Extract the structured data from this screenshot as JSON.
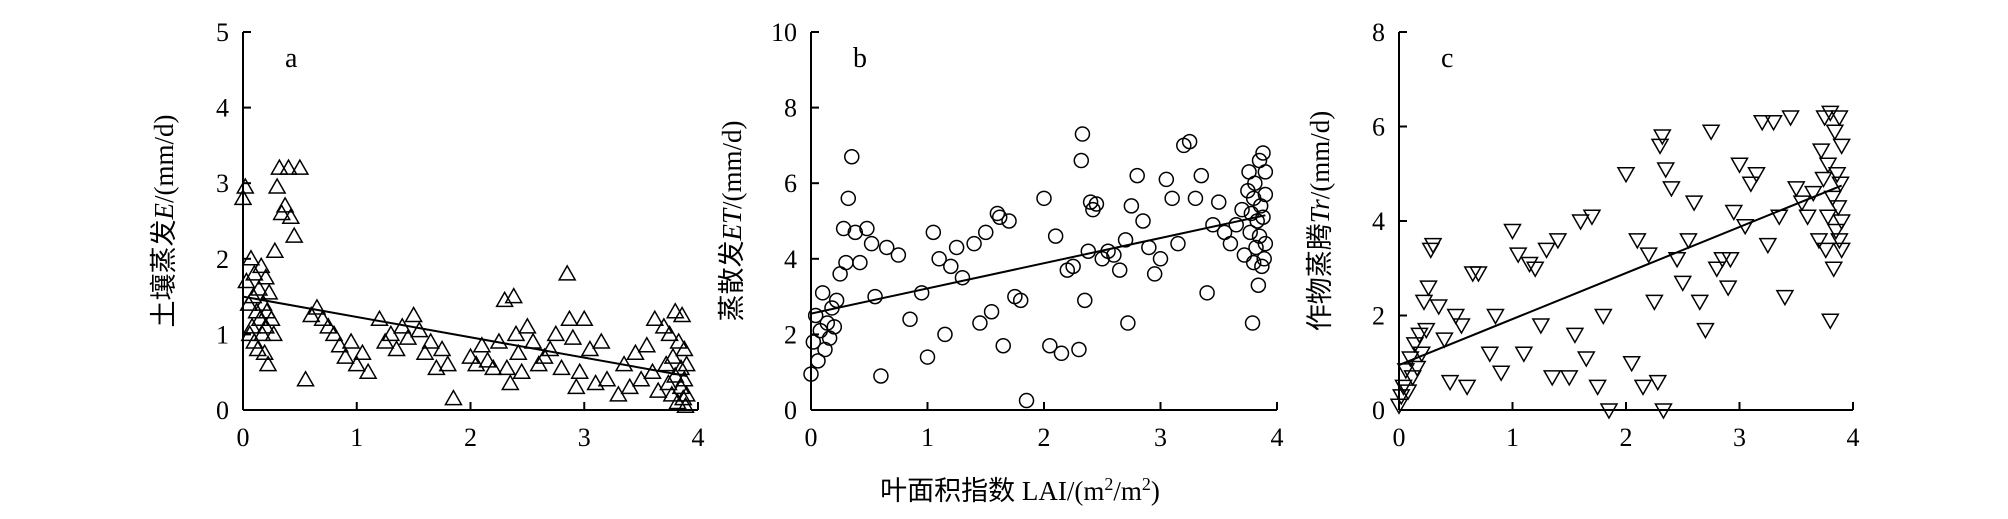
{
  "figure": {
    "xlabel_cn": "叶面积指数 ",
    "xlabel_lai": "LAI/(m",
    "xlabel_sup1": "2",
    "xlabel_mid": "/m",
    "xlabel_sup2": "2",
    "xlabel_end": ")"
  },
  "chart_data": [
    {
      "type": "scatter",
      "letter": "a",
      "ylabel_cn": "土壤蒸发",
      "ylabel_var": "E",
      "ylabel_unit": "/(mm/d)",
      "xlim": [
        0,
        4
      ],
      "ylim": [
        0,
        5
      ],
      "xticks": [
        "0",
        "1",
        "2",
        "3",
        "4"
      ],
      "yticks": [
        "0",
        "1",
        "2",
        "3",
        "4",
        "5"
      ],
      "marker": "triangle-up",
      "fit_line": {
        "x": [
          0,
          3.9
        ],
        "y": [
          1.5,
          0.45
        ]
      },
      "points": [
        [
          0.0,
          2.8
        ],
        [
          0.02,
          2.95
        ],
        [
          0.03,
          1.7
        ],
        [
          0.05,
          1.4
        ],
        [
          0.06,
          1.0
        ],
        [
          0.07,
          2.0
        ],
        [
          0.08,
          1.1
        ],
        [
          0.09,
          1.5
        ],
        [
          0.1,
          1.8
        ],
        [
          0.1,
          0.9
        ],
        [
          0.12,
          1.3
        ],
        [
          0.13,
          0.8
        ],
        [
          0.14,
          1.6
        ],
        [
          0.15,
          1.2
        ],
        [
          0.16,
          1.9
        ],
        [
          0.17,
          1.0
        ],
        [
          0.18,
          1.4
        ],
        [
          0.19,
          0.75
        ],
        [
          0.2,
          1.75
        ],
        [
          0.2,
          1.1
        ],
        [
          0.21,
          1.3
        ],
        [
          0.22,
          0.6
        ],
        [
          0.23,
          1.55
        ],
        [
          0.25,
          1.2
        ],
        [
          0.27,
          1.0
        ],
        [
          0.28,
          2.1
        ],
        [
          0.3,
          2.95
        ],
        [
          0.32,
          3.2
        ],
        [
          0.34,
          2.6
        ],
        [
          0.37,
          2.7
        ],
        [
          0.4,
          3.2
        ],
        [
          0.42,
          2.55
        ],
        [
          0.45,
          2.3
        ],
        [
          0.5,
          3.2
        ],
        [
          0.55,
          0.4
        ],
        [
          0.6,
          1.25
        ],
        [
          0.65,
          1.35
        ],
        [
          0.7,
          1.2
        ],
        [
          0.75,
          1.1
        ],
        [
          0.8,
          1.0
        ],
        [
          0.85,
          0.85
        ],
        [
          0.9,
          0.7
        ],
        [
          0.95,
          0.9
        ],
        [
          1.0,
          0.6
        ],
        [
          1.05,
          0.75
        ],
        [
          1.1,
          0.5
        ],
        [
          1.2,
          1.2
        ],
        [
          1.25,
          0.9
        ],
        [
          1.3,
          1.0
        ],
        [
          1.35,
          0.8
        ],
        [
          1.4,
          1.1
        ],
        [
          1.45,
          0.95
        ],
        [
          1.5,
          1.25
        ],
        [
          1.55,
          1.05
        ],
        [
          1.6,
          0.75
        ],
        [
          1.65,
          0.9
        ],
        [
          1.7,
          0.55
        ],
        [
          1.75,
          0.8
        ],
        [
          1.8,
          0.6
        ],
        [
          1.85,
          0.15
        ],
        [
          2.0,
          0.7
        ],
        [
          2.05,
          0.6
        ],
        [
          2.1,
          0.85
        ],
        [
          2.15,
          0.65
        ],
        [
          2.2,
          0.55
        ],
        [
          2.25,
          0.9
        ],
        [
          2.3,
          1.45
        ],
        [
          2.32,
          0.55
        ],
        [
          2.35,
          0.35
        ],
        [
          2.38,
          1.5
        ],
        [
          2.4,
          1.0
        ],
        [
          2.42,
          0.75
        ],
        [
          2.45,
          0.5
        ],
        [
          2.5,
          1.1
        ],
        [
          2.55,
          0.9
        ],
        [
          2.6,
          0.6
        ],
        [
          2.65,
          0.7
        ],
        [
          2.7,
          0.8
        ],
        [
          2.75,
          1.0
        ],
        [
          2.8,
          0.55
        ],
        [
          2.85,
          1.8
        ],
        [
          2.87,
          1.2
        ],
        [
          2.9,
          0.95
        ],
        [
          2.93,
          0.3
        ],
        [
          2.96,
          0.5
        ],
        [
          3.0,
          1.2
        ],
        [
          3.05,
          0.8
        ],
        [
          3.1,
          0.35
        ],
        [
          3.15,
          0.9
        ],
        [
          3.2,
          0.4
        ],
        [
          3.3,
          0.2
        ],
        [
          3.35,
          0.6
        ],
        [
          3.4,
          0.3
        ],
        [
          3.45,
          0.75
        ],
        [
          3.5,
          0.4
        ],
        [
          3.55,
          0.85
        ],
        [
          3.6,
          0.5
        ],
        [
          3.62,
          1.2
        ],
        [
          3.65,
          0.25
        ],
        [
          3.7,
          1.1
        ],
        [
          3.72,
          0.6
        ],
        [
          3.74,
          0.35
        ],
        [
          3.75,
          1.0
        ],
        [
          3.77,
          0.2
        ],
        [
          3.78,
          0.7
        ],
        [
          3.8,
          1.3
        ],
        [
          3.8,
          0.45
        ],
        [
          3.82,
          0.1
        ],
        [
          3.83,
          0.9
        ],
        [
          3.85,
          0.3
        ],
        [
          3.85,
          0.55
        ],
        [
          3.86,
          1.25
        ],
        [
          3.87,
          0.15
        ],
        [
          3.88,
          0.8
        ],
        [
          3.88,
          0.4
        ],
        [
          3.89,
          0.05
        ],
        [
          3.9,
          0.6
        ],
        [
          3.9,
          0.2
        ]
      ]
    },
    {
      "type": "scatter",
      "letter": "b",
      "ylabel_cn": "蒸散发",
      "ylabel_var": "ET",
      "ylabel_unit": "/(mm/d)",
      "xlim": [
        0,
        4
      ],
      "ylim": [
        0,
        10
      ],
      "xticks": [
        "0",
        "1",
        "2",
        "3",
        "4"
      ],
      "yticks": [
        "0",
        "2",
        "4",
        "6",
        "8",
        "10"
      ],
      "marker": "circle",
      "fit_line": {
        "x": [
          0,
          3.9
        ],
        "y": [
          2.55,
          5.15
        ]
      },
      "points": [
        [
          0.0,
          0.95
        ],
        [
          0.02,
          1.8
        ],
        [
          0.04,
          2.5
        ],
        [
          0.06,
          1.3
        ],
        [
          0.08,
          2.1
        ],
        [
          0.1,
          3.1
        ],
        [
          0.12,
          1.6
        ],
        [
          0.14,
          2.3
        ],
        [
          0.16,
          1.9
        ],
        [
          0.18,
          2.7
        ],
        [
          0.2,
          2.2
        ],
        [
          0.22,
          2.9
        ],
        [
          0.25,
          3.6
        ],
        [
          0.28,
          4.8
        ],
        [
          0.3,
          3.9
        ],
        [
          0.32,
          5.6
        ],
        [
          0.35,
          6.7
        ],
        [
          0.38,
          4.7
        ],
        [
          0.42,
          3.9
        ],
        [
          0.48,
          4.8
        ],
        [
          0.52,
          4.4
        ],
        [
          0.55,
          3.0
        ],
        [
          0.6,
          0.9
        ],
        [
          0.65,
          4.3
        ],
        [
          0.75,
          4.1
        ],
        [
          0.85,
          2.4
        ],
        [
          0.95,
          3.1
        ],
        [
          1.0,
          1.4
        ],
        [
          1.05,
          4.7
        ],
        [
          1.1,
          4.0
        ],
        [
          1.15,
          2.0
        ],
        [
          1.2,
          3.8
        ],
        [
          1.25,
          4.3
        ],
        [
          1.3,
          3.5
        ],
        [
          1.4,
          4.4
        ],
        [
          1.45,
          2.3
        ],
        [
          1.5,
          4.7
        ],
        [
          1.55,
          2.6
        ],
        [
          1.6,
          5.2
        ],
        [
          1.62,
          5.1
        ],
        [
          1.65,
          1.7
        ],
        [
          1.7,
          5.0
        ],
        [
          1.75,
          3.0
        ],
        [
          1.8,
          2.9
        ],
        [
          1.85,
          0.25
        ],
        [
          2.0,
          5.6
        ],
        [
          2.05,
          1.7
        ],
        [
          2.1,
          4.6
        ],
        [
          2.15,
          1.5
        ],
        [
          2.2,
          3.7
        ],
        [
          2.25,
          3.8
        ],
        [
          2.3,
          1.6
        ],
        [
          2.32,
          6.6
        ],
        [
          2.33,
          7.3
        ],
        [
          2.35,
          2.9
        ],
        [
          2.38,
          4.2
        ],
        [
          2.4,
          5.5
        ],
        [
          2.42,
          5.3
        ],
        [
          2.45,
          5.45
        ],
        [
          2.5,
          4.0
        ],
        [
          2.55,
          4.2
        ],
        [
          2.6,
          4.1
        ],
        [
          2.65,
          3.7
        ],
        [
          2.7,
          4.5
        ],
        [
          2.72,
          2.3
        ],
        [
          2.75,
          5.4
        ],
        [
          2.8,
          6.2
        ],
        [
          2.85,
          5.0
        ],
        [
          2.9,
          4.3
        ],
        [
          2.95,
          3.6
        ],
        [
          3.0,
          4.0
        ],
        [
          3.05,
          6.1
        ],
        [
          3.1,
          5.6
        ],
        [
          3.15,
          4.4
        ],
        [
          3.2,
          7.0
        ],
        [
          3.25,
          7.1
        ],
        [
          3.3,
          5.6
        ],
        [
          3.35,
          6.2
        ],
        [
          3.4,
          3.1
        ],
        [
          3.45,
          4.9
        ],
        [
          3.5,
          5.5
        ],
        [
          3.55,
          4.7
        ],
        [
          3.6,
          4.4
        ],
        [
          3.65,
          4.9
        ],
        [
          3.7,
          5.3
        ],
        [
          3.72,
          4.1
        ],
        [
          3.75,
          5.8
        ],
        [
          3.76,
          6.3
        ],
        [
          3.77,
          4.7
        ],
        [
          3.78,
          5.2
        ],
        [
          3.79,
          2.3
        ],
        [
          3.8,
          5.6
        ],
        [
          3.8,
          3.9
        ],
        [
          3.81,
          6.0
        ],
        [
          3.82,
          4.3
        ],
        [
          3.83,
          5.0
        ],
        [
          3.84,
          3.3
        ],
        [
          3.85,
          6.6
        ],
        [
          3.85,
          4.6
        ],
        [
          3.86,
          5.4
        ],
        [
          3.87,
          3.8
        ],
        [
          3.88,
          6.8
        ],
        [
          3.88,
          5.1
        ],
        [
          3.89,
          4.0
        ],
        [
          3.9,
          5.7
        ],
        [
          3.9,
          4.4
        ],
        [
          3.9,
          6.3
        ]
      ]
    },
    {
      "type": "scatter",
      "letter": "c",
      "ylabel_cn": "作物蒸腾",
      "ylabel_var": "Tr",
      "ylabel_unit": "/(mm/d)",
      "xlim": [
        0,
        4
      ],
      "ylim": [
        0,
        8
      ],
      "xticks": [
        "0",
        "1",
        "2",
        "3",
        "4"
      ],
      "yticks": [
        "0",
        "2",
        "4",
        "6",
        "8"
      ],
      "marker": "triangle-down",
      "fit_line": {
        "x": [
          0,
          3.9
        ],
        "y": [
          0.95,
          4.75
        ]
      },
      "points": [
        [
          0.0,
          0.1
        ],
        [
          0.02,
          0.3
        ],
        [
          0.04,
          0.5
        ],
        [
          0.06,
          0.85
        ],
        [
          0.08,
          0.4
        ],
        [
          0.1,
          1.1
        ],
        [
          0.12,
          0.7
        ],
        [
          0.14,
          1.4
        ],
        [
          0.16,
          0.9
        ],
        [
          0.18,
          1.6
        ],
        [
          0.2,
          1.2
        ],
        [
          0.22,
          2.3
        ],
        [
          0.24,
          1.7
        ],
        [
          0.26,
          2.6
        ],
        [
          0.28,
          3.4
        ],
        [
          0.3,
          3.5
        ],
        [
          0.35,
          2.2
        ],
        [
          0.4,
          1.5
        ],
        [
          0.45,
          0.6
        ],
        [
          0.5,
          2.0
        ],
        [
          0.55,
          1.8
        ],
        [
          0.6,
          0.5
        ],
        [
          0.65,
          2.9
        ],
        [
          0.7,
          2.9
        ],
        [
          0.8,
          1.2
        ],
        [
          0.85,
          2.0
        ],
        [
          0.9,
          0.8
        ],
        [
          1.0,
          3.8
        ],
        [
          1.05,
          3.3
        ],
        [
          1.1,
          1.2
        ],
        [
          1.15,
          3.1
        ],
        [
          1.2,
          3.0
        ],
        [
          1.25,
          1.8
        ],
        [
          1.3,
          3.4
        ],
        [
          1.35,
          0.7
        ],
        [
          1.4,
          3.6
        ],
        [
          1.5,
          0.7
        ],
        [
          1.55,
          1.6
        ],
        [
          1.6,
          4.0
        ],
        [
          1.65,
          1.1
        ],
        [
          1.7,
          4.1
        ],
        [
          1.75,
          0.5
        ],
        [
          1.8,
          2.0
        ],
        [
          1.85,
          0.0
        ],
        [
          2.0,
          5.0
        ],
        [
          2.05,
          1.0
        ],
        [
          2.1,
          3.6
        ],
        [
          2.15,
          0.5
        ],
        [
          2.2,
          3.3
        ],
        [
          2.25,
          2.3
        ],
        [
          2.28,
          0.6
        ],
        [
          2.3,
          5.6
        ],
        [
          2.32,
          5.8
        ],
        [
          2.33,
          0.0
        ],
        [
          2.35,
          5.1
        ],
        [
          2.4,
          4.7
        ],
        [
          2.45,
          3.2
        ],
        [
          2.5,
          2.7
        ],
        [
          2.55,
          3.6
        ],
        [
          2.6,
          4.4
        ],
        [
          2.65,
          2.3
        ],
        [
          2.7,
          1.7
        ],
        [
          2.75,
          5.9
        ],
        [
          2.8,
          3.0
        ],
        [
          2.85,
          3.2
        ],
        [
          2.9,
          2.6
        ],
        [
          2.92,
          3.2
        ],
        [
          2.95,
          4.2
        ],
        [
          3.0,
          5.2
        ],
        [
          3.05,
          3.9
        ],
        [
          3.1,
          4.8
        ],
        [
          3.15,
          5.0
        ],
        [
          3.2,
          6.1
        ],
        [
          3.25,
          3.5
        ],
        [
          3.3,
          6.1
        ],
        [
          3.35,
          4.1
        ],
        [
          3.4,
          2.4
        ],
        [
          3.45,
          6.2
        ],
        [
          3.5,
          4.7
        ],
        [
          3.55,
          4.4
        ],
        [
          3.6,
          4.1
        ],
        [
          3.65,
          4.6
        ],
        [
          3.7,
          3.6
        ],
        [
          3.72,
          5.5
        ],
        [
          3.74,
          4.9
        ],
        [
          3.75,
          6.2
        ],
        [
          3.76,
          3.4
        ],
        [
          3.78,
          5.2
        ],
        [
          3.78,
          4.1
        ],
        [
          3.8,
          6.3
        ],
        [
          3.8,
          1.9
        ],
        [
          3.82,
          4.5
        ],
        [
          3.83,
          3.0
        ],
        [
          3.84,
          5.9
        ],
        [
          3.85,
          3.8
        ],
        [
          3.86,
          5.0
        ],
        [
          3.87,
          4.3
        ],
        [
          3.88,
          6.2
        ],
        [
          3.88,
          3.6
        ],
        [
          3.89,
          4.8
        ],
        [
          3.9,
          5.6
        ],
        [
          3.9,
          3.4
        ],
        [
          3.9,
          4.0
        ]
      ]
    }
  ]
}
